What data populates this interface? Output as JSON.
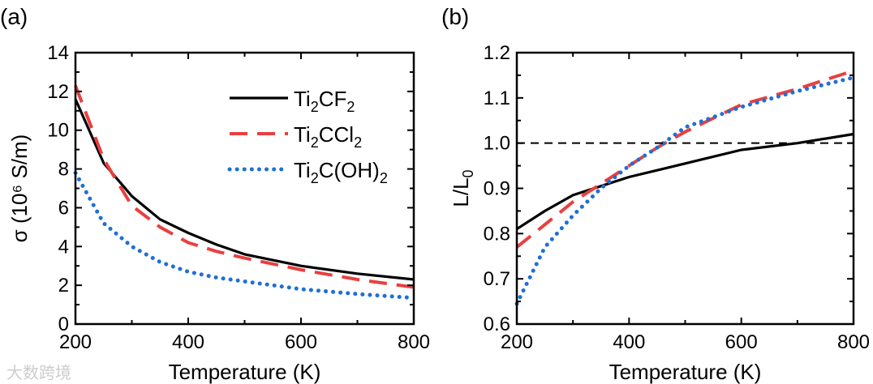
{
  "colors": {
    "Ti2CF2": "#000000",
    "Ti2CCl2": "#e8403f",
    "Ti2C(OH)2": "#1f6fd6"
  },
  "watermark": "大数跨境",
  "chart_data": [
    {
      "panel_label": "(a)",
      "type": "line",
      "xlabel": "Temperature (K)",
      "ylabel": "σ (10⁶ S/m)",
      "xlim": [
        200,
        800
      ],
      "ylim": [
        0,
        14
      ],
      "xticks": [
        200,
        400,
        600,
        800
      ],
      "yticks": [
        0,
        2,
        4,
        6,
        8,
        10,
        12,
        14
      ],
      "legend_position": "top-right",
      "series": [
        {
          "name": "Ti2CF2",
          "label_parts": [
            "Ti",
            "2",
            "CF",
            "2"
          ],
          "style": "solid",
          "x": [
            200,
            250,
            300,
            350,
            400,
            450,
            500,
            600,
            700,
            800
          ],
          "y": [
            11.6,
            8.3,
            6.6,
            5.4,
            4.7,
            4.1,
            3.6,
            3.0,
            2.6,
            2.3
          ]
        },
        {
          "name": "Ti2CCl2",
          "label_parts": [
            "Ti",
            "2",
            "CCl",
            "2"
          ],
          "style": "dashed",
          "x": [
            200,
            250,
            300,
            350,
            400,
            450,
            500,
            600,
            700,
            800
          ],
          "y": [
            12.3,
            8.5,
            6.1,
            5.0,
            4.2,
            3.75,
            3.4,
            2.8,
            2.3,
            1.9
          ]
        },
        {
          "name": "Ti2C(OH)2",
          "label_parts": [
            "Ti",
            "2",
            "C(OH)",
            "2"
          ],
          "style": "dotted",
          "x": [
            200,
            250,
            300,
            350,
            400,
            450,
            500,
            600,
            700,
            800
          ],
          "y": [
            7.8,
            5.2,
            4.0,
            3.2,
            2.7,
            2.4,
            2.2,
            1.8,
            1.55,
            1.35
          ]
        }
      ]
    },
    {
      "panel_label": "(b)",
      "type": "line",
      "xlabel": "Temperature (K)",
      "ylabel": "L/L0",
      "ylabel_parts": [
        "L/L",
        "0"
      ],
      "xlim": [
        200,
        800
      ],
      "ylim": [
        0.6,
        1.2
      ],
      "xticks": [
        200,
        400,
        600,
        800
      ],
      "yticks": [
        0.6,
        0.7,
        0.8,
        0.9,
        1.0,
        1.1,
        1.2
      ],
      "ytick_labels": [
        "0.6",
        "0.7",
        "0.8",
        "0.9",
        "1.0",
        "1.1",
        "1.2"
      ],
      "reference_line": 1.0,
      "series": [
        {
          "name": "Ti2CF2",
          "style": "solid",
          "x": [
            200,
            250,
            300,
            350,
            400,
            450,
            500,
            600,
            700,
            800
          ],
          "y": [
            0.81,
            0.85,
            0.885,
            0.905,
            0.925,
            0.94,
            0.955,
            0.985,
            1.0,
            1.02
          ]
        },
        {
          "name": "Ti2CCl2",
          "style": "dashed",
          "x": [
            200,
            250,
            300,
            350,
            400,
            450,
            500,
            600,
            700,
            800
          ],
          "y": [
            0.77,
            0.82,
            0.87,
            0.91,
            0.95,
            0.99,
            1.025,
            1.085,
            1.12,
            1.16
          ]
        },
        {
          "name": "Ti2C(OH)2",
          "style": "dotted",
          "x": [
            200,
            250,
            300,
            350,
            400,
            450,
            500,
            600,
            700,
            800
          ],
          "y": [
            0.645,
            0.77,
            0.84,
            0.9,
            0.95,
            0.99,
            1.035,
            1.08,
            1.115,
            1.145
          ]
        }
      ]
    }
  ]
}
